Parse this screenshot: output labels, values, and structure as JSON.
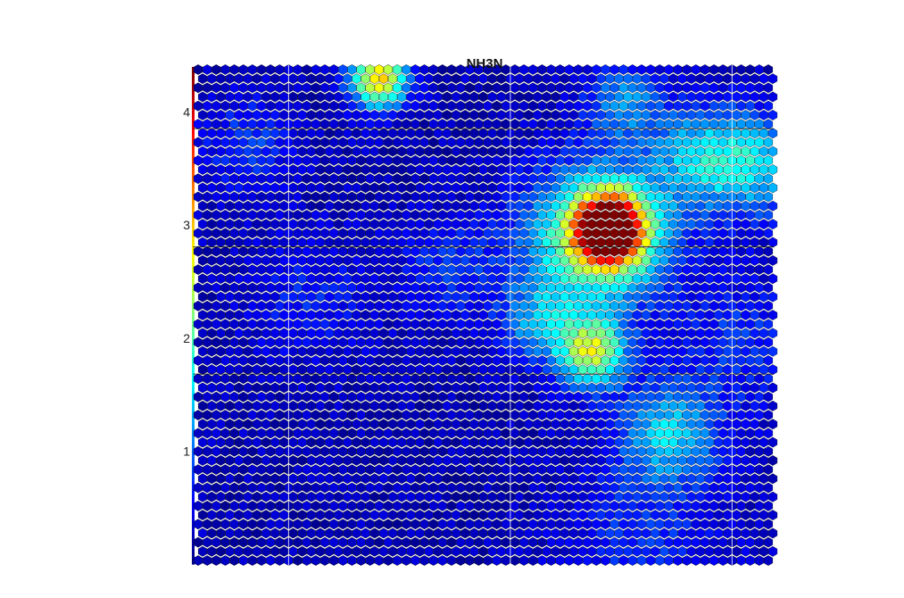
{
  "chart_data": {
    "type": "heatmap",
    "title": "NH3N",
    "grid": {
      "cols": 64,
      "rows": 55,
      "cell_shape": "hexagon",
      "cell_outline": "#000000"
    },
    "colormap": {
      "name": "jet",
      "stops": [
        "#00007f",
        "#0000ff",
        "#007fff",
        "#00ffff",
        "#7fff7f",
        "#ffff00",
        "#ff7f00",
        "#ff0000",
        "#7f0000"
      ]
    },
    "colorbar": {
      "position": "left",
      "ticks": [
        "1",
        "2",
        "3",
        "4"
      ],
      "tick_values": [
        1,
        2,
        3,
        4
      ],
      "range": [
        0,
        4.4
      ]
    },
    "baseline_value": 0.25,
    "hotspots": [
      {
        "col": 45.5,
        "row": 17.5,
        "peak": 4.4,
        "radius": 2.6
      },
      {
        "col": 44,
        "row": 18.5,
        "peak": 2.0,
        "radius": 5.5
      },
      {
        "col": 43.5,
        "row": 31,
        "peak": 2.2,
        "radius": 2.6
      },
      {
        "col": 20,
        "row": 1,
        "peak": 2.7,
        "radius": 2.2
      },
      {
        "col": 52,
        "row": 40,
        "peak": 1.2,
        "radius": 4
      },
      {
        "col": 55.5,
        "row": 9.5,
        "peak": 1.1,
        "radius": 4
      },
      {
        "col": 62,
        "row": 10.5,
        "peak": 1.1,
        "radius": 4
      },
      {
        "col": 37.5,
        "row": 28,
        "peak": 0.9,
        "radius": 3
      },
      {
        "col": 47,
        "row": 3.5,
        "peak": 0.9,
        "radius": 3
      },
      {
        "col": 5.5,
        "row": 8,
        "peak": 0.6,
        "radius": 3.5
      },
      {
        "col": 28,
        "row": 22,
        "peak": 0.5,
        "radius": 4
      },
      {
        "col": 49,
        "row": 52,
        "peak": 0.5,
        "radius": 6
      },
      {
        "col": 60,
        "row": 30,
        "peak": 0.5,
        "radius": 5
      },
      {
        "col": 12,
        "row": 25,
        "peak": 0.4,
        "radius": 5
      }
    ],
    "separators": {
      "horizontal_rows": [
        6.5,
        19.5,
        33.5
      ],
      "vertical_cols": [
        10,
        34.5,
        59
      ]
    }
  }
}
